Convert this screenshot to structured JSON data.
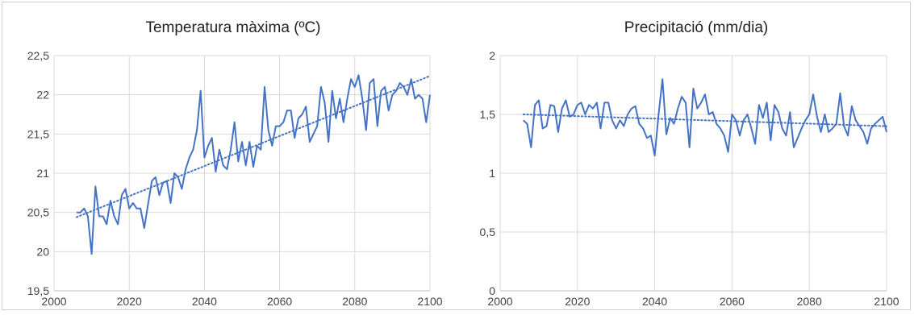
{
  "chart_data": [
    {
      "type": "line",
      "title": "Temperatura màxima (ºC)",
      "xlabel": "",
      "ylabel": "",
      "xlim": [
        2000,
        2100
      ],
      "ylim": [
        19.5,
        22.5
      ],
      "x_ticks": [
        "2000",
        "2020",
        "2040",
        "2060",
        "2080",
        "2100"
      ],
      "y_ticks": [
        "19,5",
        "20",
        "20,5",
        "21",
        "21,5",
        "22",
        "22,5"
      ],
      "grid": true,
      "line_color": "#4472C4",
      "trendline": {
        "style": "dotted",
        "x": [
          2006,
          2100
        ],
        "y": [
          20.44,
          22.24
        ]
      },
      "x": [
        2006,
        2007,
        2008,
        2009,
        2010,
        2011,
        2012,
        2013,
        2014,
        2015,
        2016,
        2017,
        2018,
        2019,
        2020,
        2021,
        2022,
        2023,
        2024,
        2025,
        2026,
        2027,
        2028,
        2029,
        2030,
        2031,
        2032,
        2033,
        2034,
        2035,
        2036,
        2037,
        2038,
        2039,
        2040,
        2041,
        2042,
        2043,
        2044,
        2045,
        2046,
        2047,
        2048,
        2049,
        2050,
        2051,
        2052,
        2053,
        2054,
        2055,
        2056,
        2057,
        2058,
        2059,
        2060,
        2061,
        2062,
        2063,
        2064,
        2065,
        2066,
        2067,
        2068,
        2069,
        2070,
        2071,
        2072,
        2073,
        2074,
        2075,
        2076,
        2077,
        2078,
        2079,
        2080,
        2081,
        2082,
        2083,
        2084,
        2085,
        2086,
        2087,
        2088,
        2089,
        2090,
        2091,
        2092,
        2093,
        2094,
        2095,
        2096,
        2097,
        2098,
        2099,
        2100
      ],
      "series": [
        {
          "values": [
            20.5,
            20.5,
            20.55,
            20.45,
            19.97,
            20.83,
            20.45,
            20.45,
            20.35,
            20.65,
            20.45,
            20.35,
            20.72,
            20.8,
            20.55,
            20.62,
            20.55,
            20.55,
            20.3,
            20.6,
            20.9,
            20.95,
            20.72,
            20.88,
            20.9,
            20.62,
            21.0,
            20.95,
            20.8,
            21.05,
            21.2,
            21.3,
            21.55,
            22.05,
            21.2,
            21.35,
            21.45,
            21.02,
            21.3,
            21.1,
            21.05,
            21.3,
            21.65,
            21.15,
            21.4,
            21.1,
            21.4,
            21.08,
            21.35,
            21.3,
            22.1,
            21.55,
            21.35,
            21.6,
            21.6,
            21.65,
            21.8,
            21.8,
            21.45,
            21.7,
            21.75,
            21.85,
            21.4,
            21.5,
            21.6,
            22.1,
            21.9,
            21.4,
            22.05,
            21.7,
            21.95,
            21.65,
            21.95,
            22.2,
            22.1,
            22.25,
            21.95,
            21.55,
            22.15,
            22.2,
            21.6,
            22.05,
            22.1,
            21.8,
            22.0,
            22.05,
            22.15,
            22.1,
            22.0,
            22.2,
            21.95,
            22.0,
            21.95,
            21.65,
            22.0
          ]
        }
      ]
    },
    {
      "type": "line",
      "title": "Precipitació (mm/dia)",
      "xlabel": "",
      "ylabel": "",
      "xlim": [
        2000,
        2100
      ],
      "ylim": [
        0,
        2
      ],
      "x_ticks": [
        "2000",
        "2020",
        "2040",
        "2060",
        "2080",
        "2100"
      ],
      "y_ticks": [
        "0",
        "0,5",
        "1",
        "1,5",
        "2"
      ],
      "grid": true,
      "line_color": "#4472C4",
      "trendline": {
        "style": "dotted",
        "x": [
          2006,
          2100
        ],
        "y": [
          1.5,
          1.4
        ]
      },
      "x": [
        2006,
        2007,
        2008,
        2009,
        2010,
        2011,
        2012,
        2013,
        2014,
        2015,
        2016,
        2017,
        2018,
        2019,
        2020,
        2021,
        2022,
        2023,
        2024,
        2025,
        2026,
        2027,
        2028,
        2029,
        2030,
        2031,
        2032,
        2033,
        2034,
        2035,
        2036,
        2037,
        2038,
        2039,
        2040,
        2041,
        2042,
        2043,
        2044,
        2045,
        2046,
        2047,
        2048,
        2049,
        2050,
        2051,
        2052,
        2053,
        2054,
        2055,
        2056,
        2057,
        2058,
        2059,
        2060,
        2061,
        2062,
        2063,
        2064,
        2065,
        2066,
        2067,
        2068,
        2069,
        2070,
        2071,
        2072,
        2073,
        2074,
        2075,
        2076,
        2077,
        2078,
        2079,
        2080,
        2081,
        2082,
        2083,
        2084,
        2085,
        2086,
        2087,
        2088,
        2089,
        2090,
        2091,
        2092,
        2093,
        2094,
        2095,
        2096,
        2097,
        2098,
        2099,
        2100
      ],
      "series": [
        {
          "values": [
            1.45,
            1.42,
            1.22,
            1.58,
            1.62,
            1.38,
            1.4,
            1.58,
            1.57,
            1.35,
            1.55,
            1.62,
            1.48,
            1.5,
            1.58,
            1.6,
            1.5,
            1.58,
            1.55,
            1.6,
            1.38,
            1.6,
            1.6,
            1.45,
            1.38,
            1.45,
            1.4,
            1.5,
            1.55,
            1.57,
            1.42,
            1.38,
            1.3,
            1.32,
            1.15,
            1.5,
            1.8,
            1.33,
            1.47,
            1.42,
            1.55,
            1.65,
            1.6,
            1.22,
            1.72,
            1.55,
            1.6,
            1.67,
            1.5,
            1.52,
            1.42,
            1.38,
            1.32,
            1.18,
            1.5,
            1.45,
            1.32,
            1.45,
            1.5,
            1.38,
            1.25,
            1.58,
            1.47,
            1.6,
            1.28,
            1.58,
            1.52,
            1.38,
            1.32,
            1.52,
            1.22,
            1.3,
            1.38,
            1.45,
            1.5,
            1.67,
            1.48,
            1.35,
            1.5,
            1.35,
            1.38,
            1.42,
            1.68,
            1.4,
            1.32,
            1.57,
            1.45,
            1.4,
            1.35,
            1.25,
            1.38,
            1.42,
            1.45,
            1.48,
            1.35
          ]
        }
      ]
    }
  ]
}
